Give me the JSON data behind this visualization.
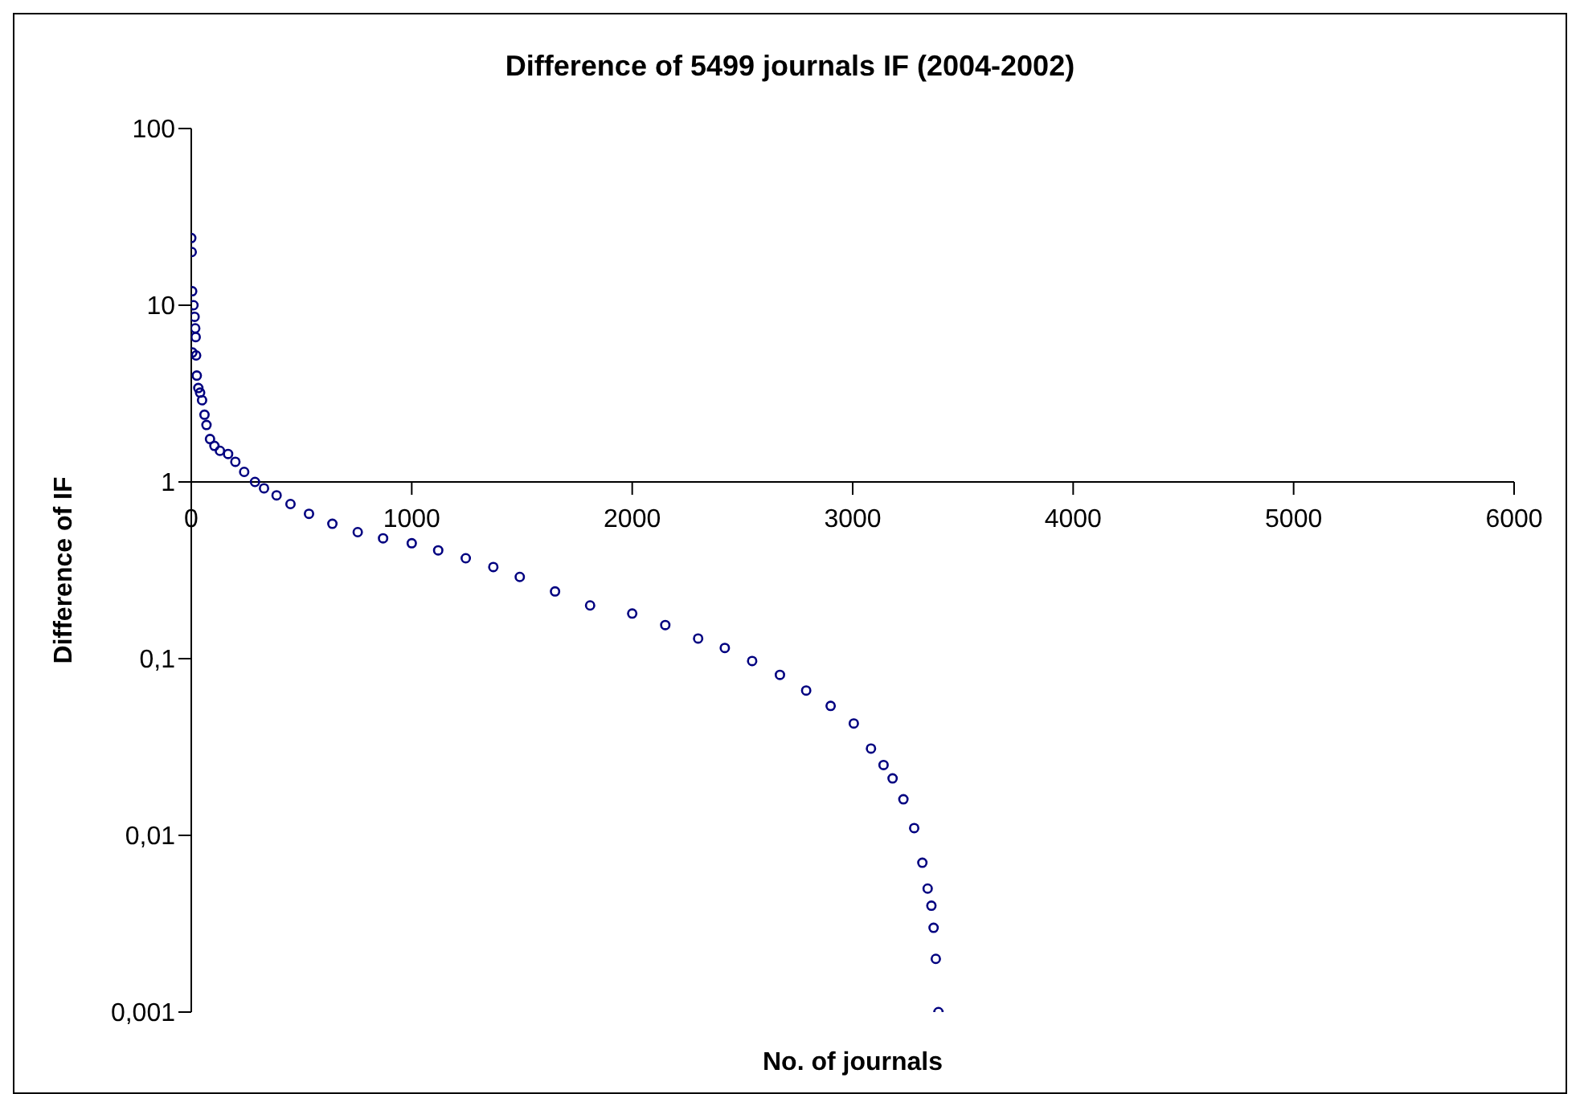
{
  "chart_data": {
    "type": "scatter",
    "title": "Difference of 5499 journals IF (2004-2002)",
    "xlabel": "No. of journals",
    "ylabel": "Difference of IF",
    "log": "y",
    "grid": false,
    "legend": false,
    "marker": "circle",
    "xlim": [
      0,
      6000
    ],
    "xticks": [
      0,
      1000,
      2000,
      3000,
      4000,
      5000,
      6000
    ],
    "ylim": [
      0.001,
      100
    ],
    "yticks": [
      {
        "value": 100,
        "label": "100"
      },
      {
        "value": 10,
        "label": "10"
      },
      {
        "value": 1,
        "label": "1"
      },
      {
        "value": 0.1,
        "label": "0,1"
      },
      {
        "value": 0.01,
        "label": "0,01"
      },
      {
        "value": 0.001,
        "label": "0,001"
      }
    ],
    "series": [
      {
        "color": "#000080",
        "x": [
          0,
          2,
          4,
          10,
          15,
          18,
          20,
          5,
          22,
          25,
          32,
          40,
          49,
          60,
          69,
          85,
          105,
          130,
          167,
          200,
          240,
          289,
          330,
          387,
          450,
          534,
          640,
          755,
          870,
          1000,
          1120,
          1245,
          1370,
          1490,
          1650,
          1809,
          2000,
          2150,
          2299,
          2420,
          2544,
          2670,
          2789,
          2900,
          3005,
          3083,
          3140,
          3181,
          3230,
          3279,
          3316,
          3340,
          3357,
          3367,
          3377,
          3389
        ],
        "values": [
          24,
          20,
          12,
          10,
          8.6,
          7.4,
          6.6,
          5.4,
          5.2,
          4.0,
          3.4,
          3.2,
          2.9,
          2.4,
          2.1,
          1.75,
          1.6,
          1.5,
          1.44,
          1.3,
          1.14,
          1.0,
          0.92,
          0.84,
          0.75,
          0.66,
          0.58,
          0.52,
          0.48,
          0.45,
          0.41,
          0.37,
          0.33,
          0.29,
          0.24,
          0.2,
          0.18,
          0.155,
          0.13,
          0.115,
          0.097,
          0.081,
          0.066,
          0.054,
          0.043,
          0.031,
          0.025,
          0.021,
          0.016,
          0.011,
          0.007,
          0.005,
          0.004,
          0.003,
          0.002,
          0.001
        ]
      }
    ]
  }
}
